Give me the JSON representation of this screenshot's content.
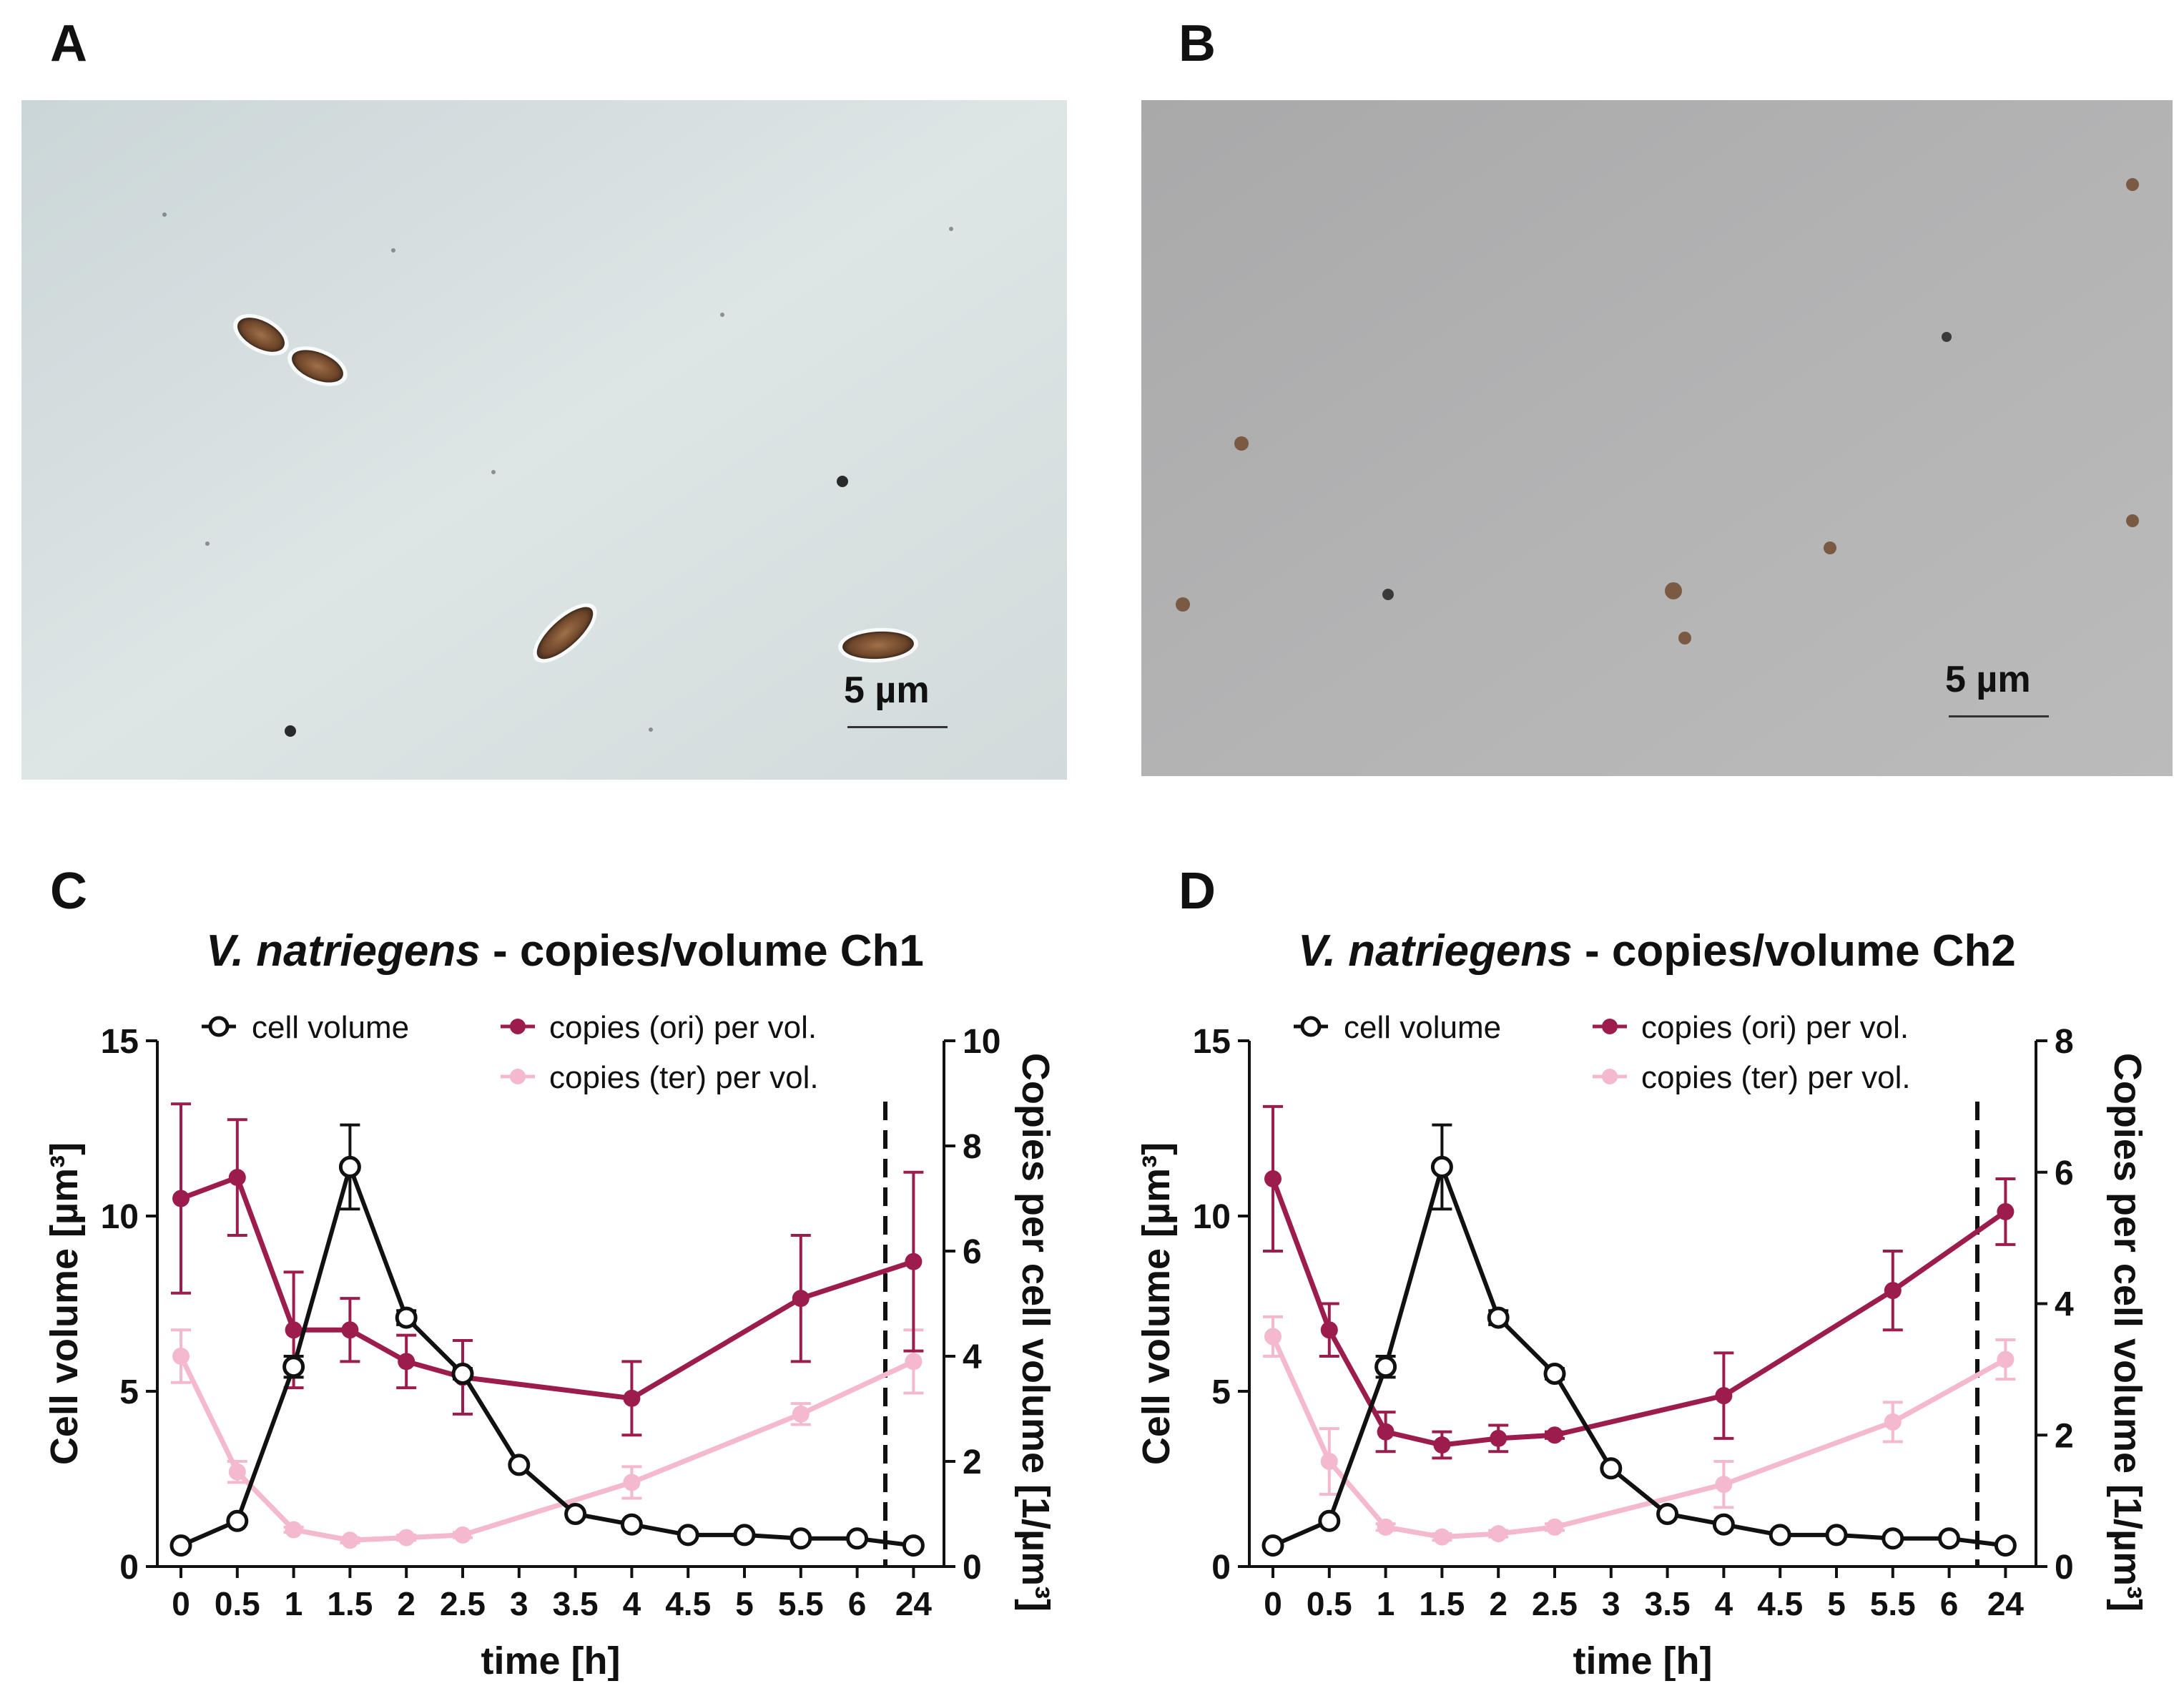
{
  "panels": {
    "a_label": "A",
    "b_label": "B",
    "c_label": "C",
    "d_label": "D",
    "a_scale": "5 µm",
    "b_scale": "5 µm"
  },
  "colors": {
    "cell_volume": "#111111",
    "ori": "#9c1c4e",
    "ter": "#f4b8cf"
  },
  "chart_data": [
    {
      "type": "line",
      "title_italic": "V. natriegens",
      "title_rest": " - copies/volume Ch1",
      "xlabel": "time [h]",
      "ylabel_left": "Cell volume [µm³]",
      "ylabel_right": "Copies per cell volume [1/µm³]",
      "categories": [
        "0",
        "0.5",
        "1",
        "1.5",
        "2",
        "2.5",
        "3",
        "3.5",
        "4",
        "4.5",
        "5",
        "5.5",
        "6",
        "24"
      ],
      "ylim_left": [
        0,
        15
      ],
      "yticks_left": [
        0,
        5,
        10,
        15
      ],
      "ylim_right": [
        0,
        10
      ],
      "yticks_right": [
        0,
        2,
        4,
        6,
        8,
        10
      ],
      "dashed_break_after": "6",
      "legend": {
        "cell_volume": "cell volume",
        "ori": "copies (ori) per vol.",
        "ter": "copies (ter) per vol."
      },
      "series": [
        {
          "key": "cell_volume",
          "axis": "left",
          "marker": "open-circle",
          "x": [
            "0",
            "0.5",
            "1",
            "1.5",
            "2",
            "2.5",
            "3",
            "3.5",
            "4",
            "4.5",
            "5",
            "5.5",
            "6",
            "24"
          ],
          "values": [
            0.6,
            1.3,
            5.7,
            11.4,
            7.1,
            5.5,
            2.9,
            1.5,
            1.2,
            0.9,
            0.9,
            0.8,
            0.8,
            0.6
          ],
          "errors": [
            0.1,
            0.1,
            0.3,
            1.2,
            0.2,
            0.15,
            0.1,
            0.05,
            0.05,
            0.05,
            0.05,
            0.05,
            0.05,
            0.05
          ]
        },
        {
          "key": "ori",
          "axis": "right",
          "marker": "filled-circle",
          "x": [
            "0",
            "0.5",
            "1",
            "1.5",
            "2",
            "2.5",
            "4",
            "5.5",
            "24"
          ],
          "values": [
            7.0,
            7.4,
            4.5,
            4.5,
            3.9,
            3.6,
            3.2,
            5.1,
            5.8
          ],
          "errors": [
            1.8,
            1.1,
            1.1,
            0.6,
            0.5,
            0.7,
            0.7,
            1.2,
            1.7
          ]
        },
        {
          "key": "ter",
          "axis": "right",
          "marker": "filled-circle",
          "x": [
            "0",
            "0.5",
            "1",
            "1.5",
            "2",
            "2.5",
            "4",
            "5.5",
            "24"
          ],
          "values": [
            4.0,
            1.8,
            0.7,
            0.5,
            0.55,
            0.6,
            1.6,
            2.9,
            3.9
          ],
          "errors": [
            0.5,
            0.2,
            0.05,
            0.05,
            0.05,
            0.05,
            0.3,
            0.2,
            0.6
          ]
        }
      ]
    },
    {
      "type": "line",
      "title_italic": "V. natriegens",
      "title_rest": " - copies/volume Ch2",
      "xlabel": "time [h]",
      "ylabel_left": "Cell volume [µm³]",
      "ylabel_right": "Copies per cell volume [1/µm³]",
      "categories": [
        "0",
        "0.5",
        "1",
        "1.5",
        "2",
        "2.5",
        "3",
        "3.5",
        "4",
        "4.5",
        "5",
        "5.5",
        "6",
        "24"
      ],
      "ylim_left": [
        0,
        15
      ],
      "yticks_left": [
        0,
        5,
        10,
        15
      ],
      "ylim_right": [
        0,
        8
      ],
      "yticks_right": [
        0,
        2,
        4,
        6,
        8
      ],
      "dashed_break_after": "6",
      "legend": {
        "cell_volume": "cell volume",
        "ori": "copies (ori) per vol.",
        "ter": "copies (ter) per vol."
      },
      "series": [
        {
          "key": "cell_volume",
          "axis": "left",
          "marker": "open-circle",
          "x": [
            "0",
            "0.5",
            "1",
            "1.5",
            "2",
            "2.5",
            "3",
            "3.5",
            "4",
            "4.5",
            "5",
            "5.5",
            "6",
            "24"
          ],
          "values": [
            0.6,
            1.3,
            5.7,
            11.4,
            7.1,
            5.5,
            2.8,
            1.5,
            1.2,
            0.9,
            0.9,
            0.8,
            0.8,
            0.6
          ],
          "errors": [
            0.1,
            0.1,
            0.3,
            1.2,
            0.2,
            0.15,
            0.1,
            0.05,
            0.05,
            0.05,
            0.05,
            0.05,
            0.05,
            0.05
          ]
        },
        {
          "key": "ori",
          "axis": "right",
          "marker": "filled-circle",
          "x": [
            "0",
            "0.5",
            "1",
            "1.5",
            "2",
            "2.5",
            "4",
            "5.5",
            "24"
          ],
          "values": [
            5.9,
            3.6,
            2.05,
            1.85,
            1.95,
            2.0,
            2.6,
            4.2,
            5.4
          ],
          "errors": [
            1.1,
            0.4,
            0.3,
            0.2,
            0.2,
            0.05,
            0.65,
            0.6,
            0.5
          ]
        },
        {
          "key": "ter",
          "axis": "right",
          "marker": "filled-circle",
          "x": [
            "0",
            "0.5",
            "1",
            "1.5",
            "2",
            "2.5",
            "4",
            "5.5",
            "24"
          ],
          "values": [
            3.5,
            1.6,
            0.6,
            0.45,
            0.5,
            0.6,
            1.25,
            2.2,
            3.15
          ],
          "errors": [
            0.3,
            0.5,
            0.05,
            0.05,
            0.05,
            0.05,
            0.35,
            0.3,
            0.3
          ]
        }
      ]
    }
  ]
}
